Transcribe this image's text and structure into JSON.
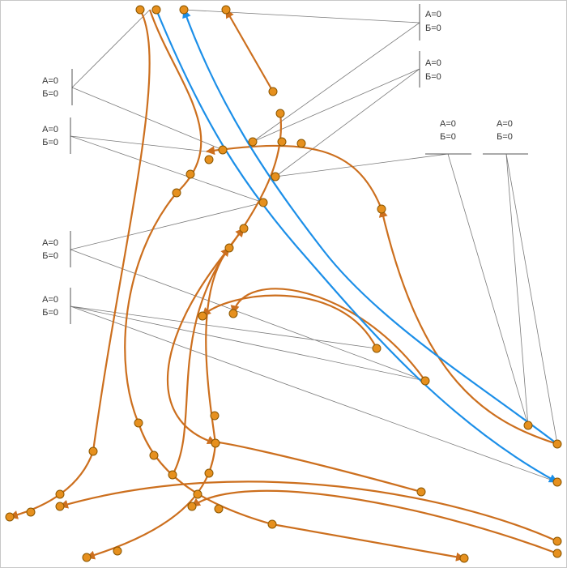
{
  "labels": [
    {
      "a": "А=0",
      "b": "Б=0"
    },
    {
      "a": "А=0",
      "b": "Б=0"
    },
    {
      "a": "А=0",
      "b": "Б=0"
    },
    {
      "a": "А=0",
      "b": "Б=0"
    },
    {
      "a": "А=0",
      "b": "Б=0"
    },
    {
      "a": "А=0",
      "b": "Б=0"
    },
    {
      "a": "А=0",
      "b": "Б=0"
    },
    {
      "a": "А=0",
      "b": "Б=0"
    }
  ]
}
